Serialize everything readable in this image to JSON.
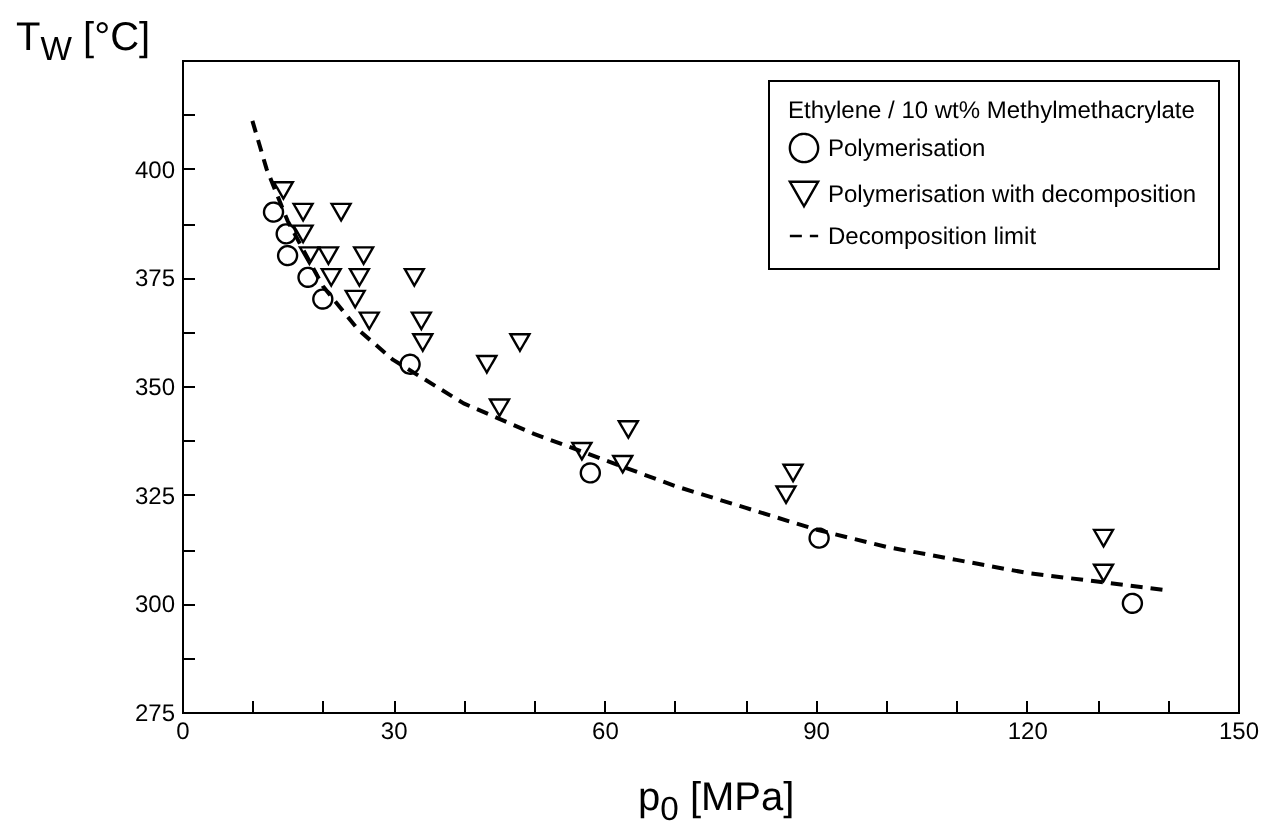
{
  "chart_data": {
    "type": "scatter",
    "xlabel": "p$_{0}$ [MPa]",
    "ylabel": "T$_{W}$ [°C]",
    "legend_title": "Ethylene / 10 wt% Methylmethacrylate",
    "legend": "top right",
    "grid": false,
    "xlim": [
      0,
      150
    ],
    "ylim": [
      275,
      425
    ],
    "xticks": [
      0,
      {
        "value": 10,
        "label": null
      },
      {
        "value": 20,
        "label": null
      },
      30,
      {
        "value": 40,
        "label": null
      },
      {
        "value": 50,
        "label": null
      },
      60,
      {
        "value": 70,
        "label": null
      },
      {
        "value": 80,
        "label": null
      },
      90,
      {
        "value": 100,
        "label": null
      },
      {
        "value": 110,
        "label": null
      },
      120,
      {
        "value": 130,
        "label": null
      },
      {
        "value": 140,
        "label": null
      },
      150
    ],
    "yticks": [
      275,
      {
        "value": 287.5,
        "label": null
      },
      300,
      {
        "value": 312.5,
        "label": null
      },
      325,
      {
        "value": 337.5,
        "label": null
      },
      350,
      {
        "value": 362.5,
        "label": null
      },
      375,
      {
        "value": 387.5,
        "label": null
      },
      400,
      {
        "value": 412.5,
        "label": null
      }
    ],
    "series": [
      {
        "name": "Polymerisation",
        "type": "scatter",
        "marker": "circle",
        "color": "#000000",
        "x": [
          13,
          14.8,
          15,
          17.9,
          20,
          32.4,
          58,
          90.5,
          135
        ],
        "values": [
          390,
          385,
          380,
          375,
          370,
          355,
          330,
          315,
          300
        ]
      },
      {
        "name": "Polymerisation with decomposition",
        "type": "scatter",
        "marker": "triangle",
        "color": "#000000",
        "x": [
          14.4,
          17.2,
          22.6,
          17.2,
          18.1,
          20.8,
          25.8,
          21.2,
          25.2,
          33,
          24.6,
          26.6,
          34,
          34.2,
          48,
          43.3,
          45.1,
          56.8,
          63.4,
          62.6,
          85.8,
          86.8,
          130.9,
          130.9
        ],
        "values": [
          395,
          390,
          390,
          385,
          380,
          380,
          380,
          375,
          375,
          375,
          370,
          365,
          365,
          360,
          360,
          355,
          345,
          335,
          340,
          332,
          325,
          330,
          315,
          307
        ]
      },
      {
        "name": "Decomposition limit",
        "type": "line",
        "line_style": "dashed",
        "marker": "none",
        "color": "#000000",
        "x": [
          10,
          12,
          15,
          20,
          25,
          30,
          40,
          50,
          60,
          70,
          80,
          90,
          100,
          110,
          120,
          130,
          140
        ],
        "values": [
          411,
          400,
          388,
          373,
          363,
          356,
          346,
          339,
          333,
          327,
          322,
          317,
          313,
          310,
          307,
          305,
          303
        ]
      }
    ]
  }
}
